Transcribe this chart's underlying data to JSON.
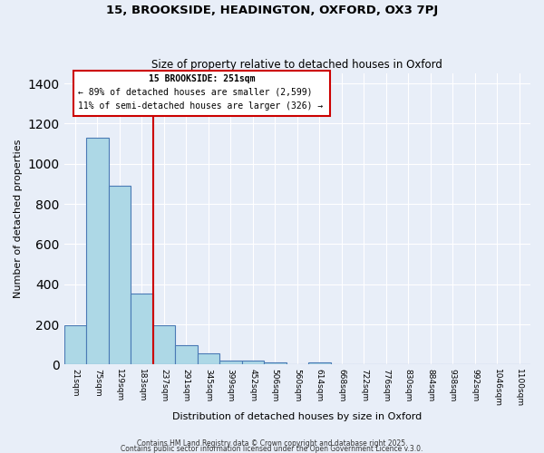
{
  "title1": "15, BROOKSIDE, HEADINGTON, OXFORD, OX3 7PJ",
  "title2": "Size of property relative to detached houses in Oxford",
  "xlabel": "Distribution of detached houses by size in Oxford",
  "ylabel": "Number of detached properties",
  "categories": [
    "21sqm",
    "75sqm",
    "129sqm",
    "183sqm",
    "237sqm",
    "291sqm",
    "345sqm",
    "399sqm",
    "452sqm",
    "506sqm",
    "560sqm",
    "614sqm",
    "668sqm",
    "722sqm",
    "776sqm",
    "830sqm",
    "884sqm",
    "938sqm",
    "992sqm",
    "1046sqm",
    "1100sqm"
  ],
  "values": [
    197,
    1130,
    893,
    355,
    195,
    95,
    57,
    22,
    18,
    12,
    0,
    12,
    0,
    0,
    0,
    0,
    0,
    0,
    0,
    0,
    0
  ],
  "bar_color": "#add8e6",
  "bar_edge_color": "#4a7ab5",
  "bg_color": "#e8eef8",
  "grid_color": "#ffffff",
  "vline_pos": 3.5,
  "vline_color": "#cc0000",
  "annotation_title": "15 BROOKSIDE: 251sqm",
  "annotation_line2": "← 89% of detached houses are smaller (2,599)",
  "annotation_line3": "11% of semi-detached houses are larger (326) →",
  "annotation_box_color": "#cc0000",
  "ylim": [
    0,
    1450
  ],
  "yticks": [
    0,
    200,
    400,
    600,
    800,
    1000,
    1200,
    1400
  ],
  "footer1": "Contains HM Land Registry data © Crown copyright and database right 2025.",
  "footer2": "Contains public sector information licensed under the Open Government Licence v.3.0."
}
